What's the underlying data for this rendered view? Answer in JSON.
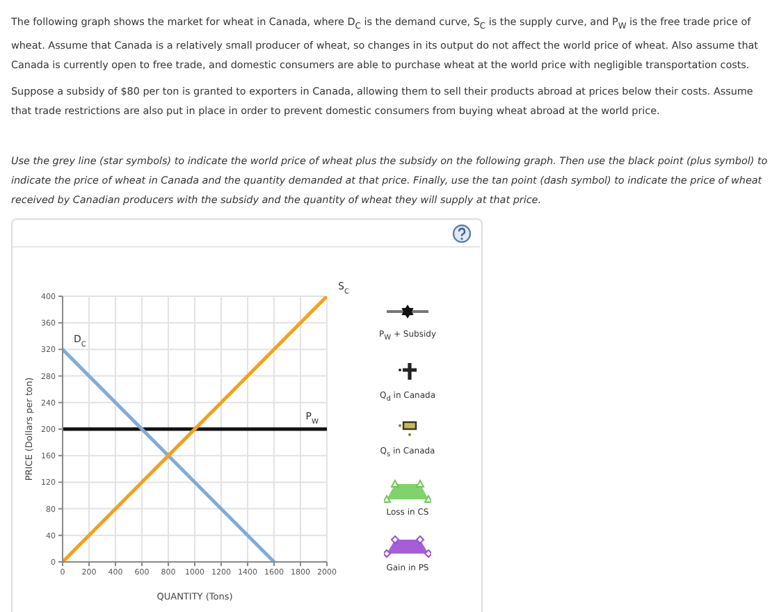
{
  "chart_data": {
    "type": "line",
    "xlabel": "QUANTITY (Tons)",
    "ylabel": "PRICE (Dollars per ton)",
    "series": [
      {
        "name": "D$_{C}$",
        "color": "#80acd6",
        "x": [
          0,
          1600
        ],
        "values": [
          320,
          0
        ]
      },
      {
        "name": "S$_{C}$",
        "color": "#f5a01a",
        "x": [
          0,
          2000
        ],
        "values": [
          0,
          400
        ]
      }
    ],
    "xlim": [
      0,
      2000
    ],
    "xticks": [
      0,
      200,
      400,
      600,
      800,
      1000,
      1200,
      1400,
      1600,
      1800,
      2000
    ],
    "ylim": [
      0,
      400
    ],
    "yticks": [
      0,
      40,
      80,
      120,
      160,
      200,
      240,
      280,
      320,
      360,
      400
    ],
    "grid": true,
    "ref_lines": [
      {
        "axis": "y",
        "value": 200,
        "label": "P$_{W}$",
        "color": "#111111"
      }
    ],
    "annotations": [
      "The following graph shows the market for wheat in Canada, where D$_{C}$ is the demand curve, S$_{C}$ is the supply curve, and P$_{W}$ is the free trade price of wheat. Assume that Canada is a relatively small producer of wheat, so changes in its output do not affect the world price of wheat. Also assume that Canada is currently open to free trade, and domestic consumers are able to purchase wheat at the world price with negligible transportation costs.",
      "Suppose a subsidy of $80 per ton is granted to exporters in Canada, allowing them to sell their products abroad at prices below their costs. Assume that trade restrictions are also put in place in order to prevent domestic consumers from buying wheat abroad at the world price.",
      "Use the grey line (star symbols) to indicate the world price of wheat plus the subsidy on the following graph. Then use the black point (plus symbol) to indicate the price of wheat in Canada and the quantity demanded at that price. Finally, use the tan point (dash symbol) to indicate the price of wheat received by Canadian producers with the subsidy and the quantity of wheat they will supply at that price.",
      "P$_{W}$ + Subsidy",
      "Q$_{d}$ in Canada",
      "Q$_{s}$ in Canada",
      "Loss in CS",
      "Gain in PS"
    ]
  }
}
